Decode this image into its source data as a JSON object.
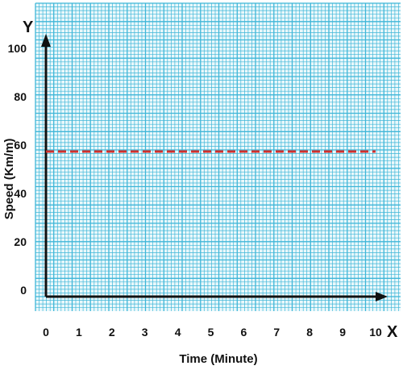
{
  "chart_data": {
    "type": "line",
    "title": "",
    "xlabel": "Time (Minute)",
    "ylabel": "Speed (Km/m)",
    "x_axis_letter": "X",
    "y_axis_letter": "Y",
    "x_ticks": [
      "0",
      "1",
      "2",
      "3",
      "4",
      "5",
      "6",
      "7",
      "8",
      "9",
      "10"
    ],
    "y_ticks": [
      "0",
      "20",
      "40",
      "60",
      "80",
      "100"
    ],
    "xlim": [
      0,
      10
    ],
    "ylim": [
      0,
      100
    ],
    "grid": true,
    "series": [
      {
        "x": [
          0,
          10
        ],
        "y": [
          60,
          60
        ],
        "style": "dashed",
        "color": "#d0312d"
      }
    ],
    "colors": {
      "grid_background": "#eaf8fb",
      "grid_line": "#3fb6d8",
      "axis": "#111111"
    }
  }
}
